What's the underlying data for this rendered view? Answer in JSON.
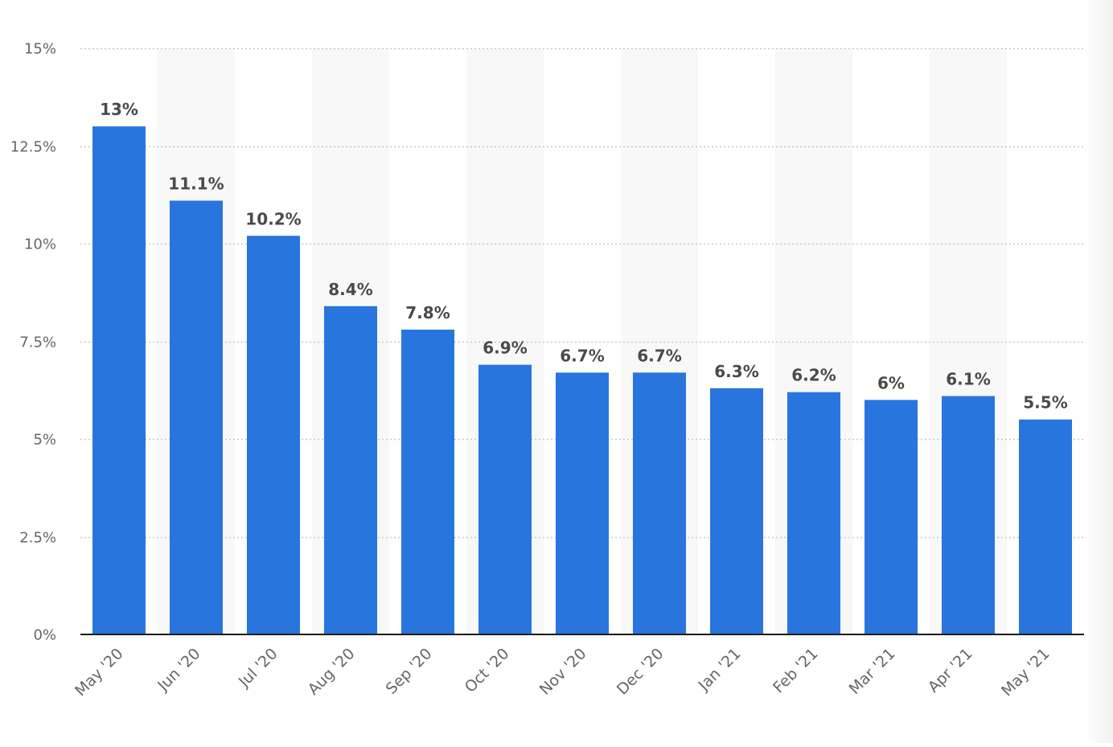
{
  "chart_data": {
    "type": "bar",
    "title": "",
    "xlabel": "",
    "ylabel": "",
    "categories": [
      "May '20",
      "Jun '20",
      "Jul '20",
      "Aug '20",
      "Sep '20",
      "Oct '20",
      "Nov '20",
      "Dec '20",
      "Jan '21",
      "Feb '21",
      "Mar '21",
      "Apr '21",
      "May '21"
    ],
    "values": [
      13,
      11.1,
      10.2,
      8.4,
      7.8,
      6.9,
      6.7,
      6.7,
      6.3,
      6.2,
      6,
      6.1,
      5.5
    ],
    "data_labels": [
      "13%",
      "11.1%",
      "10.2%",
      "8.4%",
      "7.8%",
      "6.9%",
      "6.7%",
      "6.7%",
      "6.3%",
      "6.2%",
      "6%",
      "6.1%",
      "5.5%"
    ],
    "ylim": [
      0,
      15
    ],
    "yticks": [
      0,
      2.5,
      5,
      7.5,
      10,
      12.5,
      15
    ],
    "ytick_labels": [
      "0%",
      "2.5%",
      "5%",
      "7.5%",
      "10%",
      "12.5%",
      "15%"
    ],
    "grid": true,
    "grid_style": "dotted",
    "alternating_column_shading": true,
    "colors": {
      "bar": "#2875de",
      "column_band": "#f8f8f8",
      "grid": "#c8c8c8",
      "axis": "#1a1a1a",
      "tick_text": "#666666",
      "label_text": "#4a4a4a"
    }
  }
}
